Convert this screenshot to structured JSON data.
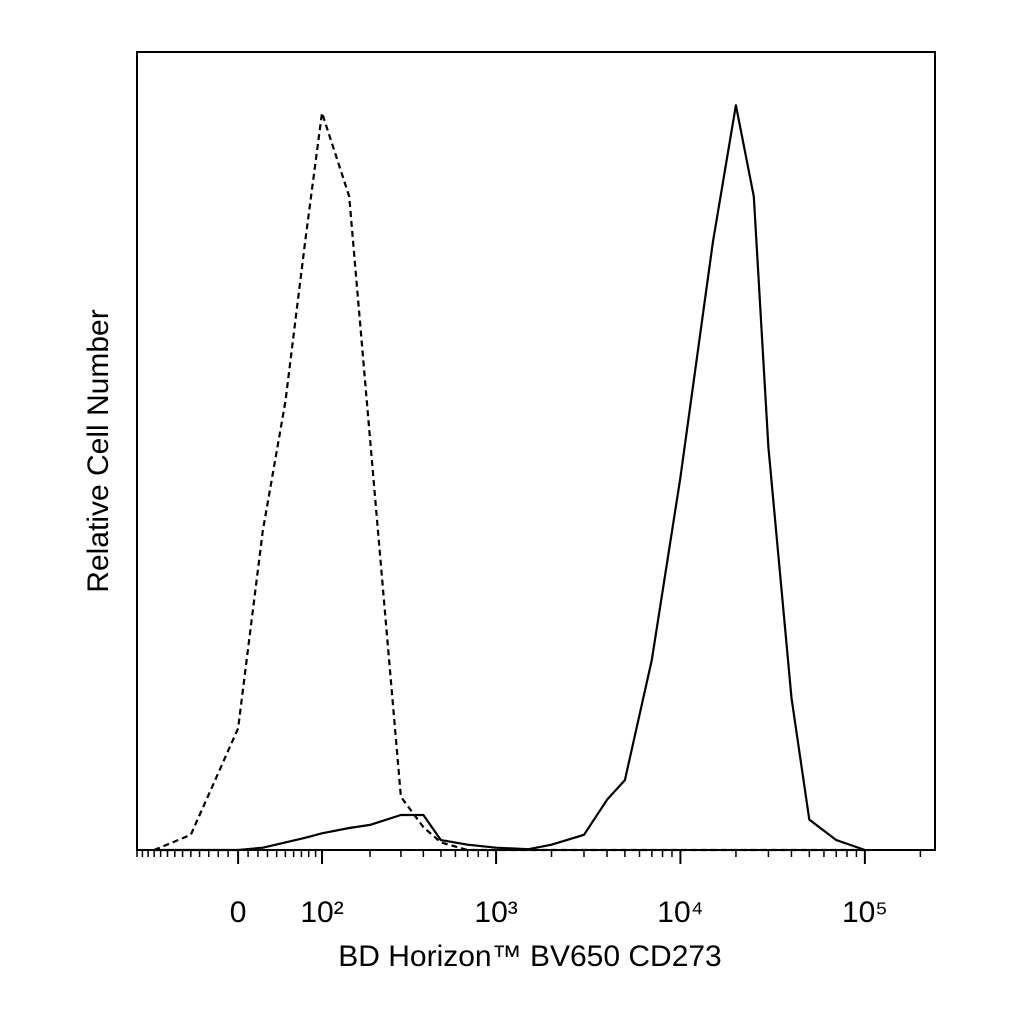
{
  "chart_data": {
    "type": "histogram-overlay",
    "x_label": "BD Horizon™ BV650 CD273",
    "y_label": "Relative Cell Number",
    "xscale": "biexponential",
    "xlim": [
      -130,
      240000
    ],
    "xticks": [
      0,
      {
        "value": 100,
        "label": "10²"
      },
      {
        "value": 1000,
        "label": "10³"
      },
      {
        "value": 10000,
        "label": "10⁴"
      },
      {
        "value": 100000,
        "label": "10⁵"
      }
    ],
    "ylim": [
      0,
      105
    ],
    "x": [
      -100,
      -50,
      0,
      25,
      50,
      75,
      100,
      150,
      200,
      300,
      400,
      500,
      700,
      1000,
      1500,
      2000,
      3000,
      4000,
      5000,
      7000,
      10000,
      15000,
      20000,
      25000,
      30000,
      40000,
      50000,
      70000,
      100000
    ],
    "series": [
      {
        "color": "#000000",
        "dashed": true,
        "values": [
          0,
          2,
          16,
          42,
          59,
          80,
          97,
          86,
          54,
          7,
          3,
          1,
          0,
          0,
          0,
          0,
          0,
          0,
          0,
          0,
          0,
          0,
          0,
          0,
          0,
          0,
          0,
          0,
          0
        ]
      },
      {
        "color": "#000000",
        "dashed": false,
        "values": [
          0,
          0,
          0,
          0.3,
          1,
          1.6,
          2.2,
          2.9,
          3.3,
          4.6,
          4.6,
          1.3,
          0.7,
          0.3,
          0.1,
          0.7,
          2,
          6.6,
          9.2,
          25,
          49,
          80,
          98,
          86,
          53,
          20,
          4,
          1.3,
          0
        ]
      }
    ]
  }
}
